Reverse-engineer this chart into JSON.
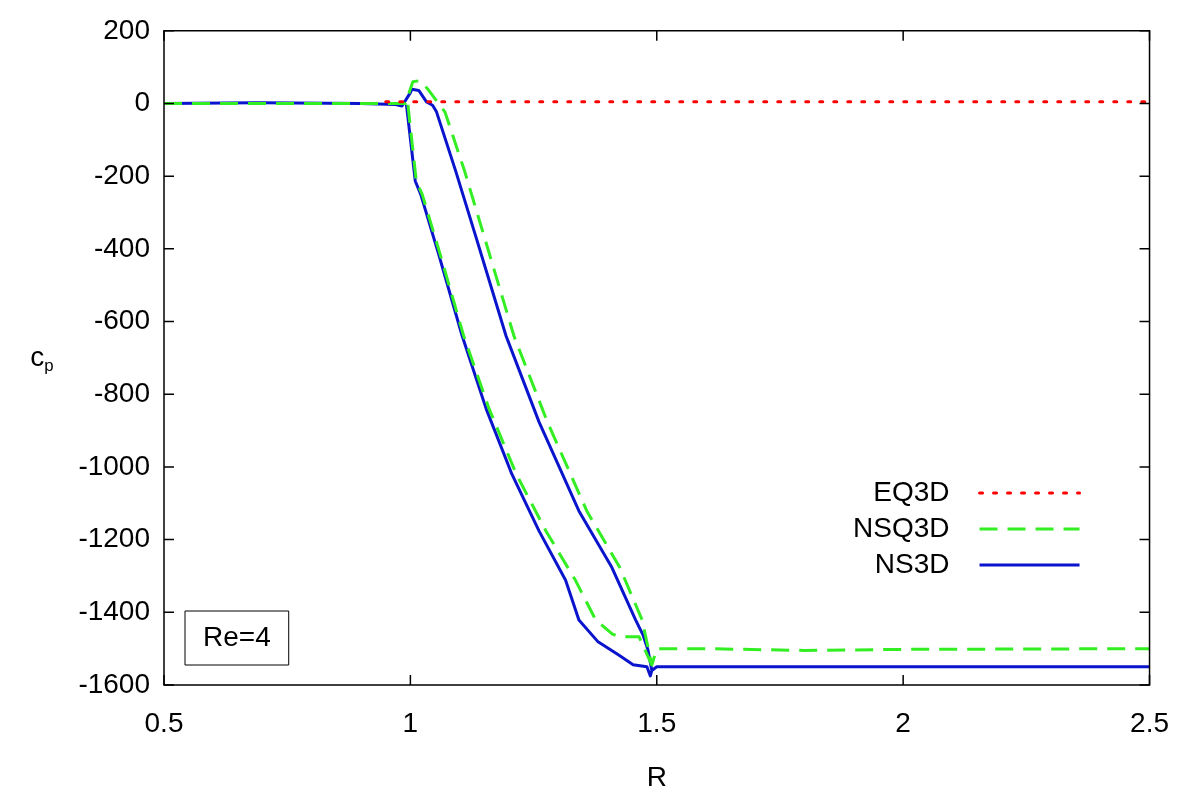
{
  "chart_data": {
    "type": "line",
    "xlabel": "R",
    "ylabel": "c$_{p}$",
    "xlim": [
      0.5,
      2.5
    ],
    "xticks": [
      0.5,
      1,
      1.5,
      2,
      2.5
    ],
    "ylim": [
      -1600,
      200
    ],
    "yticks": [
      200,
      0,
      -200,
      -400,
      -600,
      -800,
      -1000,
      -1200,
      -1400,
      -1600
    ],
    "grid": false,
    "legend": "bottom right",
    "marker": "none",
    "annotations": [
      "Re=4"
    ],
    "series": [
      {
        "name": "EQ3D",
        "color": "#ff0000",
        "line_style": "dotted",
        "x": [
          0.95,
          1.5,
          2.0,
          2.5
        ],
        "values": [
          5,
          5,
          5,
          5
        ]
      },
      {
        "name": "NSQ3D",
        "color": "#33ee22",
        "line_style": "dashed",
        "x": [
          0.5,
          0.8,
          0.98,
          0.99,
          1.005,
          1.02,
          1.035,
          1.07,
          1.11,
          1.15,
          1.21,
          1.278,
          1.358,
          1.425,
          1.47,
          1.49,
          1.5,
          1.6,
          1.8,
          2.0,
          2.5,
          null,
          0.995,
          1.012,
          1.024,
          1.06,
          1.108,
          1.16,
          1.215,
          1.275,
          1.335,
          1.376,
          1.41,
          1.424,
          1.464,
          1.49
        ],
        "values": [
          0,
          0,
          0,
          0,
          60,
          63,
          40,
          -23,
          -186,
          -367,
          -639,
          -876,
          -1121,
          -1277,
          -1420,
          -1545,
          -1500,
          -1500,
          -1505,
          -1502,
          -1500,
          null,
          -4,
          -214,
          -250,
          -413,
          -639,
          -841,
          -1020,
          -1176,
          -1312,
          -1421,
          -1460,
          -1467,
          -1467,
          -1545
        ]
      },
      {
        "name": "NS3D",
        "color": "#0a14cc",
        "line_style": "solid",
        "x": [
          0.5,
          0.7,
          0.9,
          0.97,
          0.983,
          1.0,
          1.003,
          1.017,
          1.033,
          1.045,
          1.053,
          1.092,
          1.133,
          1.194,
          1.261,
          1.342,
          1.409,
          1.457,
          1.472,
          1.482,
          1.49,
          1.5,
          2.0,
          2.5,
          null,
          0.992,
          1.01,
          1.021,
          1.057,
          1.105,
          1.154,
          1.206,
          1.261,
          1.315,
          1.342,
          1.38,
          1.422,
          1.452,
          1.48,
          1.487,
          1.49
        ],
        "values": [
          0,
          2,
          0,
          -3,
          -7,
          30,
          39,
          36,
          4,
          -5,
          -23,
          -186,
          -367,
          -639,
          -876,
          -1121,
          -1277,
          -1421,
          -1462,
          -1503,
          -1560,
          -1550,
          -1550,
          -1550,
          null,
          -4,
          -214,
          -250,
          -413,
          -639,
          -841,
          -1020,
          -1176,
          -1312,
          -1421,
          -1480,
          -1517,
          -1544,
          -1550,
          -1575,
          -1560
        ]
      }
    ]
  }
}
